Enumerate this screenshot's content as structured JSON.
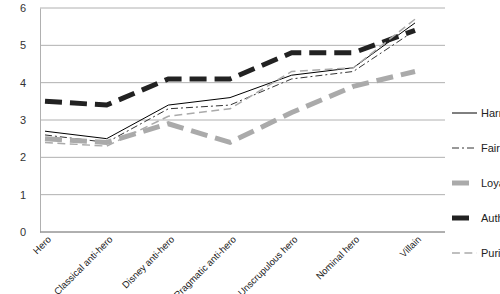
{
  "chart_data": {
    "type": "line",
    "categories": [
      "Hero",
      "Classical anti-hero",
      "Disney anti-hero",
      "Pragmatic anti-hero",
      "Unscrupulous hero",
      "Nominal hero",
      "Villain"
    ],
    "series": [
      {
        "name": "Harm",
        "color": "#000000",
        "line_style": "solid",
        "values": [
          2.7,
          2.5,
          3.4,
          3.6,
          4.2,
          4.4,
          5.6
        ]
      },
      {
        "name": "Fairness",
        "color": "#333333",
        "line_style": "dashdot",
        "values": [
          2.6,
          2.4,
          3.3,
          3.4,
          4.1,
          4.3,
          5.4
        ]
      },
      {
        "name": "Loyalty",
        "color": "#aaaaaa",
        "line_style": "dashed",
        "values": [
          2.5,
          2.4,
          2.9,
          2.4,
          3.2,
          3.9,
          4.3
        ]
      },
      {
        "name": "Authority",
        "color": "#222222",
        "line_style": "dashed",
        "values": [
          3.5,
          3.4,
          4.1,
          4.1,
          4.8,
          4.8,
          5.4
        ]
      },
      {
        "name": "Purity",
        "color": "#aaaaaa",
        "line_style": "dashed",
        "values": [
          2.4,
          2.3,
          3.1,
          3.3,
          4.3,
          4.4,
          5.7
        ]
      }
    ],
    "ylim": [
      0,
      6
    ],
    "yticks": [
      0,
      1,
      2,
      3,
      4,
      5,
      6
    ],
    "grid": true,
    "legend": "right"
  }
}
